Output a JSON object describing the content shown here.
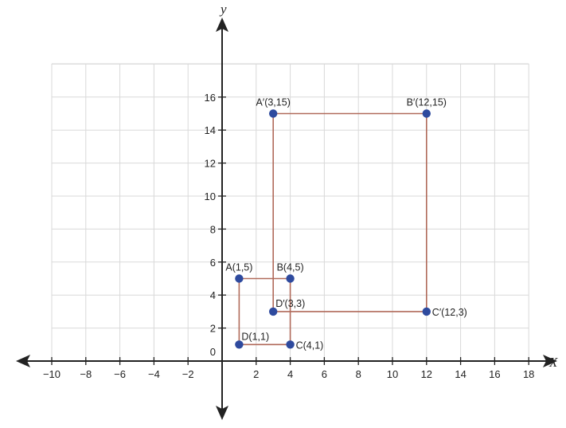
{
  "chart_data": {
    "type": "scatter",
    "title": "",
    "xlabel": "X",
    "ylabel": "y",
    "xlim": [
      -10,
      18
    ],
    "ylim": [
      0,
      18
    ],
    "grid": true,
    "x_ticks": [
      -10,
      -8,
      -6,
      -4,
      -2,
      2,
      4,
      6,
      8,
      10,
      12,
      14,
      16,
      18
    ],
    "x_tick_labels": [
      "−10",
      "−8",
      "−6",
      "−4",
      "−2",
      "2",
      "4",
      "6",
      "8",
      "10",
      "12",
      "14",
      "16",
      "18"
    ],
    "y_ticks": [
      0,
      2,
      4,
      6,
      8,
      10,
      12,
      14,
      16
    ],
    "y_tick_labels": [
      "0",
      "2",
      "4",
      "6",
      "8",
      "10",
      "12",
      "14",
      "16"
    ],
    "point_color": "#2e4a9e",
    "polygon_color": "#b06a5a",
    "axis_color": "#222222",
    "polygons": [
      {
        "name": "ABCD",
        "points": [
          {
            "label": "A(1,5)",
            "x": 1,
            "y": 5,
            "anchor": "above"
          },
          {
            "label": "B(4,5)",
            "x": 4,
            "y": 5,
            "anchor": "above"
          },
          {
            "label": "C(4,1)",
            "x": 4,
            "y": 1,
            "anchor": "right"
          },
          {
            "label": "D(1,1)",
            "x": 1,
            "y": 1,
            "anchor": "upper-right"
          }
        ]
      },
      {
        "name": "A'B'C'D'",
        "points": [
          {
            "label": "A′(3,15)",
            "x": 3,
            "y": 15,
            "anchor": "above"
          },
          {
            "label": "B′(12,15)",
            "x": 12,
            "y": 15,
            "anchor": "above"
          },
          {
            "label": "C′(12,3)",
            "x": 12,
            "y": 3,
            "anchor": "right"
          },
          {
            "label": "D′(3,3)",
            "x": 3,
            "y": 3,
            "anchor": "upper-right"
          }
        ]
      }
    ]
  }
}
